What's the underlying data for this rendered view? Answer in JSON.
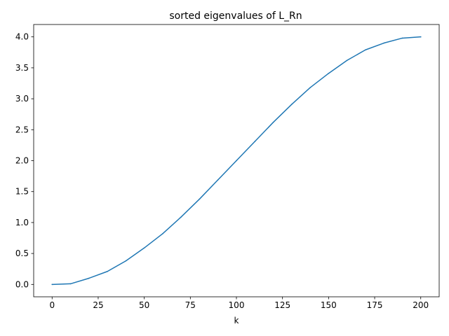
{
  "chart_data": {
    "type": "line",
    "title": "sorted eigenvalues of L_Rn",
    "xlabel": "k",
    "ylabel": "",
    "xlim": [
      -10,
      210
    ],
    "ylim": [
      -0.2,
      4.2
    ],
    "xticks": [
      0,
      25,
      50,
      75,
      100,
      125,
      150,
      175,
      200
    ],
    "xtick_labels": [
      "0",
      "25",
      "50",
      "75",
      "100",
      "125",
      "150",
      "175",
      "200"
    ],
    "yticks": [
      0.0,
      0.5,
      1.0,
      1.5,
      2.0,
      2.5,
      3.0,
      3.5,
      4.0
    ],
    "ytick_labels": [
      "0.0",
      "0.5",
      "1.0",
      "1.5",
      "2.0",
      "2.5",
      "3.0",
      "3.5",
      "4.0"
    ],
    "grid": false,
    "legend": "none",
    "series": [
      {
        "color": "#1f77b4",
        "x": [
          0,
          10,
          20,
          30,
          40,
          50,
          60,
          70,
          80,
          90,
          100,
          110,
          120,
          130,
          140,
          150,
          160,
          170,
          180,
          190,
          200
        ],
        "values": [
          0.0,
          0.01,
          0.1,
          0.21,
          0.38,
          0.59,
          0.82,
          1.09,
          1.38,
          1.69,
          2.0,
          2.31,
          2.62,
          2.91,
          3.18,
          3.41,
          3.62,
          3.79,
          3.9,
          3.98,
          4.0
        ]
      }
    ]
  }
}
